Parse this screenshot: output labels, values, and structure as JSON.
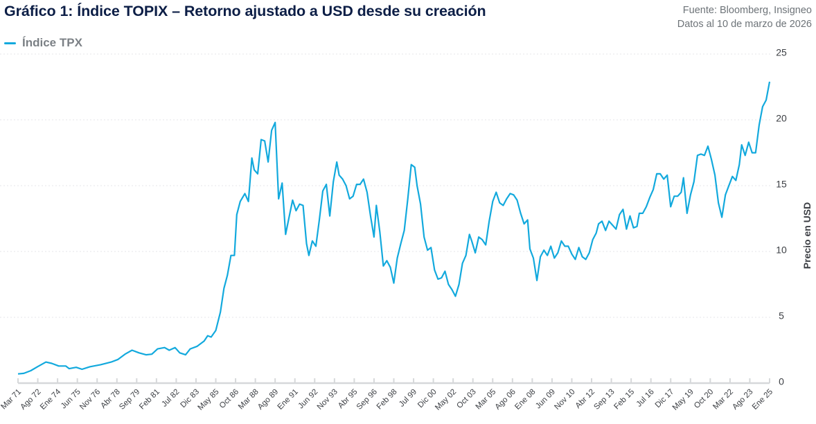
{
  "header": {
    "title": "Gráfico 1: Índice TOPIX – Retorno ajustado a USD desde su creación",
    "source_line1": "Fuente: Bloomberg, Insigneo",
    "source_line2": "Datos al 10 de marzo de 2026"
  },
  "chart_data": {
    "type": "line",
    "title": "Gráfico 1: Índice TOPIX – Retorno ajustado a USD desde su creación",
    "xlabel": "",
    "ylabel": "Precio en USD",
    "ylim": [
      0,
      25
    ],
    "yticks": [
      "0",
      "5",
      "10",
      "15",
      "20",
      "25"
    ],
    "y_axis_side": "right",
    "grid": "horizontal dotted",
    "legend_position": "top-left",
    "xlim": [
      "1971-03",
      "2025-01"
    ],
    "xticks": [
      "Mar 71",
      "Ago 72",
      "Ene 74",
      "Jun 75",
      "Nov 76",
      "Abr 78",
      "Sep 79",
      "Feb 81",
      "Jul 82",
      "Dic 83",
      "May 85",
      "Oct 86",
      "Mar 88",
      "Ago 89",
      "Ene 91",
      "Jun 92",
      "Nov 93",
      "Abr 95",
      "Sep 96",
      "Feb 98",
      "Jul 99",
      "Dic 00",
      "May 02",
      "Oct 03",
      "Mar 05",
      "Ago 06",
      "Ene 08",
      "Jun 09",
      "Nov 10",
      "Abr 12",
      "Sep 13",
      "Feb 15",
      "Jul 16",
      "Dic 17",
      "May 19",
      "Oct 20",
      "Mar 22",
      "Ago 23",
      "Ene 25"
    ],
    "series": [
      {
        "name": "Índice TPX",
        "color": "#12a9dd",
        "points": [
          [
            "1971-03",
            0.7
          ],
          [
            "1971-08",
            0.74
          ],
          [
            "1972-02",
            0.95
          ],
          [
            "1972-08",
            1.26
          ],
          [
            "1973-03",
            1.6
          ],
          [
            "1973-08",
            1.5
          ],
          [
            "1974-02",
            1.3
          ],
          [
            "1974-08",
            1.3
          ],
          [
            "1974-11",
            1.1
          ],
          [
            "1975-05",
            1.2
          ],
          [
            "1975-10",
            1.05
          ],
          [
            "1976-05",
            1.25
          ],
          [
            "1977-02",
            1.4
          ],
          [
            "1977-11",
            1.6
          ],
          [
            "1978-05",
            1.8
          ],
          [
            "1978-11",
            2.2
          ],
          [
            "1979-05",
            2.5
          ],
          [
            "1979-11",
            2.3
          ],
          [
            "1980-05",
            2.15
          ],
          [
            "1980-10",
            2.2
          ],
          [
            "1981-03",
            2.6
          ],
          [
            "1981-09",
            2.7
          ],
          [
            "1982-01",
            2.5
          ],
          [
            "1982-06",
            2.7
          ],
          [
            "1982-10",
            2.3
          ],
          [
            "1983-03",
            2.15
          ],
          [
            "1983-07",
            2.6
          ],
          [
            "1984-01",
            2.8
          ],
          [
            "1984-07",
            3.2
          ],
          [
            "1984-10",
            3.6
          ],
          [
            "1985-01",
            3.5
          ],
          [
            "1985-05",
            4.0
          ],
          [
            "1985-09",
            5.4
          ],
          [
            "1985-12",
            7.2
          ],
          [
            "1986-03",
            8.2
          ],
          [
            "1986-06",
            9.7
          ],
          [
            "1986-09",
            9.7
          ],
          [
            "1986-11",
            12.8
          ],
          [
            "1987-02",
            13.8
          ],
          [
            "1987-06",
            14.4
          ],
          [
            "1987-09",
            13.8
          ],
          [
            "1987-12",
            17.1
          ],
          [
            "1988-02",
            16.2
          ],
          [
            "1988-05",
            15.9
          ],
          [
            "1988-08",
            18.5
          ],
          [
            "1988-11",
            18.4
          ],
          [
            "1989-02",
            16.8
          ],
          [
            "1989-05",
            19.2
          ],
          [
            "1989-08",
            19.8
          ],
          [
            "1989-11",
            14.0
          ],
          [
            "1990-02",
            15.2
          ],
          [
            "1990-05",
            11.3
          ],
          [
            "1990-08",
            12.6
          ],
          [
            "1990-11",
            13.9
          ],
          [
            "1991-02",
            13.1
          ],
          [
            "1991-05",
            13.6
          ],
          [
            "1991-08",
            13.5
          ],
          [
            "1991-11",
            10.6
          ],
          [
            "1992-01",
            9.7
          ],
          [
            "1992-04",
            10.8
          ],
          [
            "1992-07",
            10.4
          ],
          [
            "1992-10",
            12.4
          ],
          [
            "1993-01",
            14.6
          ],
          [
            "1993-04",
            15.1
          ],
          [
            "1993-07",
            12.7
          ],
          [
            "1993-10",
            15.3
          ],
          [
            "1994-01",
            16.8
          ],
          [
            "1994-03",
            15.8
          ],
          [
            "1994-06",
            15.5
          ],
          [
            "1994-09",
            15.0
          ],
          [
            "1994-12",
            14.0
          ],
          [
            "1995-03",
            14.2
          ],
          [
            "1995-06",
            15.1
          ],
          [
            "1995-09",
            15.1
          ],
          [
            "1995-12",
            15.5
          ],
          [
            "1996-03",
            14.5
          ],
          [
            "1996-06",
            12.7
          ],
          [
            "1996-09",
            11.1
          ],
          [
            "1996-11",
            13.5
          ],
          [
            "1997-02",
            11.5
          ],
          [
            "1997-05",
            8.9
          ],
          [
            "1997-08",
            9.3
          ],
          [
            "1997-11",
            8.8
          ],
          [
            "1998-02",
            7.6
          ],
          [
            "1998-05",
            9.5
          ],
          [
            "1998-08",
            10.6
          ],
          [
            "1998-11",
            11.6
          ],
          [
            "1999-02",
            14.0
          ],
          [
            "1999-05",
            16.6
          ],
          [
            "1999-08",
            16.4
          ],
          [
            "1999-10",
            15.0
          ],
          [
            "2000-01",
            13.6
          ],
          [
            "2000-04",
            11.1
          ],
          [
            "2000-07",
            10.1
          ],
          [
            "2000-10",
            10.3
          ],
          [
            "2001-01",
            8.6
          ],
          [
            "2001-04",
            7.9
          ],
          [
            "2001-07",
            8.0
          ],
          [
            "2001-10",
            8.5
          ],
          [
            "2002-01",
            7.5
          ],
          [
            "2002-04",
            7.1
          ],
          [
            "2002-07",
            6.6
          ],
          [
            "2002-10",
            7.5
          ],
          [
            "2003-01",
            9.1
          ],
          [
            "2003-04",
            9.7
          ],
          [
            "2003-07",
            11.3
          ],
          [
            "2003-09",
            10.8
          ],
          [
            "2003-12",
            9.9
          ],
          [
            "2004-03",
            11.1
          ],
          [
            "2004-06",
            10.9
          ],
          [
            "2004-09",
            10.5
          ],
          [
            "2004-12",
            12.3
          ],
          [
            "2005-03",
            13.8
          ],
          [
            "2005-06",
            14.5
          ],
          [
            "2005-09",
            13.7
          ],
          [
            "2005-12",
            13.5
          ],
          [
            "2006-03",
            14.0
          ],
          [
            "2006-06",
            14.4
          ],
          [
            "2006-09",
            14.3
          ],
          [
            "2006-12",
            13.9
          ],
          [
            "2007-03",
            12.9
          ],
          [
            "2007-06",
            12.1
          ],
          [
            "2007-09",
            12.4
          ],
          [
            "2007-11",
            10.2
          ],
          [
            "2008-02",
            9.5
          ],
          [
            "2008-05",
            7.8
          ],
          [
            "2008-08",
            9.6
          ],
          [
            "2008-11",
            10.1
          ],
          [
            "2009-02",
            9.7
          ],
          [
            "2009-05",
            10.4
          ],
          [
            "2009-08",
            9.5
          ],
          [
            "2009-11",
            9.9
          ],
          [
            "2010-02",
            10.8
          ],
          [
            "2010-05",
            10.4
          ],
          [
            "2010-08",
            10.4
          ],
          [
            "2010-11",
            9.8
          ],
          [
            "2011-02",
            9.4
          ],
          [
            "2011-05",
            10.3
          ],
          [
            "2011-08",
            9.6
          ],
          [
            "2011-11",
            9.4
          ],
          [
            "2012-02",
            9.9
          ],
          [
            "2012-05",
            10.9
          ],
          [
            "2012-08",
            11.4
          ],
          [
            "2012-10",
            12.1
          ],
          [
            "2013-01",
            12.3
          ],
          [
            "2013-04",
            11.6
          ],
          [
            "2013-07",
            12.3
          ],
          [
            "2013-10",
            12.0
          ],
          [
            "2014-01",
            11.7
          ],
          [
            "2014-04",
            12.8
          ],
          [
            "2014-07",
            13.2
          ],
          [
            "2014-10",
            11.7
          ],
          [
            "2015-01",
            12.7
          ],
          [
            "2015-04",
            11.8
          ],
          [
            "2015-07",
            11.9
          ],
          [
            "2015-09",
            12.9
          ],
          [
            "2015-12",
            12.9
          ],
          [
            "2016-03",
            13.4
          ],
          [
            "2016-06",
            14.1
          ],
          [
            "2016-09",
            14.7
          ],
          [
            "2016-12",
            15.9
          ],
          [
            "2017-03",
            15.9
          ],
          [
            "2017-06",
            15.5
          ],
          [
            "2017-09",
            15.8
          ],
          [
            "2017-12",
            13.4
          ],
          [
            "2018-03",
            14.2
          ],
          [
            "2018-06",
            14.2
          ],
          [
            "2018-09",
            14.5
          ],
          [
            "2018-11",
            15.6
          ],
          [
            "2019-02",
            12.9
          ],
          [
            "2019-05",
            14.3
          ],
          [
            "2019-08",
            15.3
          ],
          [
            "2019-11",
            17.3
          ],
          [
            "2020-02",
            17.4
          ],
          [
            "2020-05",
            17.3
          ],
          [
            "2020-08",
            18.0
          ],
          [
            "2020-11",
            17.0
          ],
          [
            "2021-02",
            15.8
          ],
          [
            "2021-05",
            13.7
          ],
          [
            "2021-08",
            12.6
          ],
          [
            "2021-11",
            14.3
          ],
          [
            "2022-02",
            15.0
          ],
          [
            "2022-05",
            15.7
          ],
          [
            "2022-08",
            15.4
          ],
          [
            "2022-11",
            16.6
          ],
          [
            "2023-01",
            18.1
          ],
          [
            "2023-04",
            17.3
          ],
          [
            "2023-07",
            18.3
          ],
          [
            "2023-10",
            17.5
          ],
          [
            "2024-01",
            17.5
          ],
          [
            "2024-04",
            19.6
          ],
          [
            "2024-07",
            21.0
          ],
          [
            "2024-10",
            21.5
          ],
          [
            "2025-01",
            22.9
          ]
        ]
      }
    ]
  }
}
